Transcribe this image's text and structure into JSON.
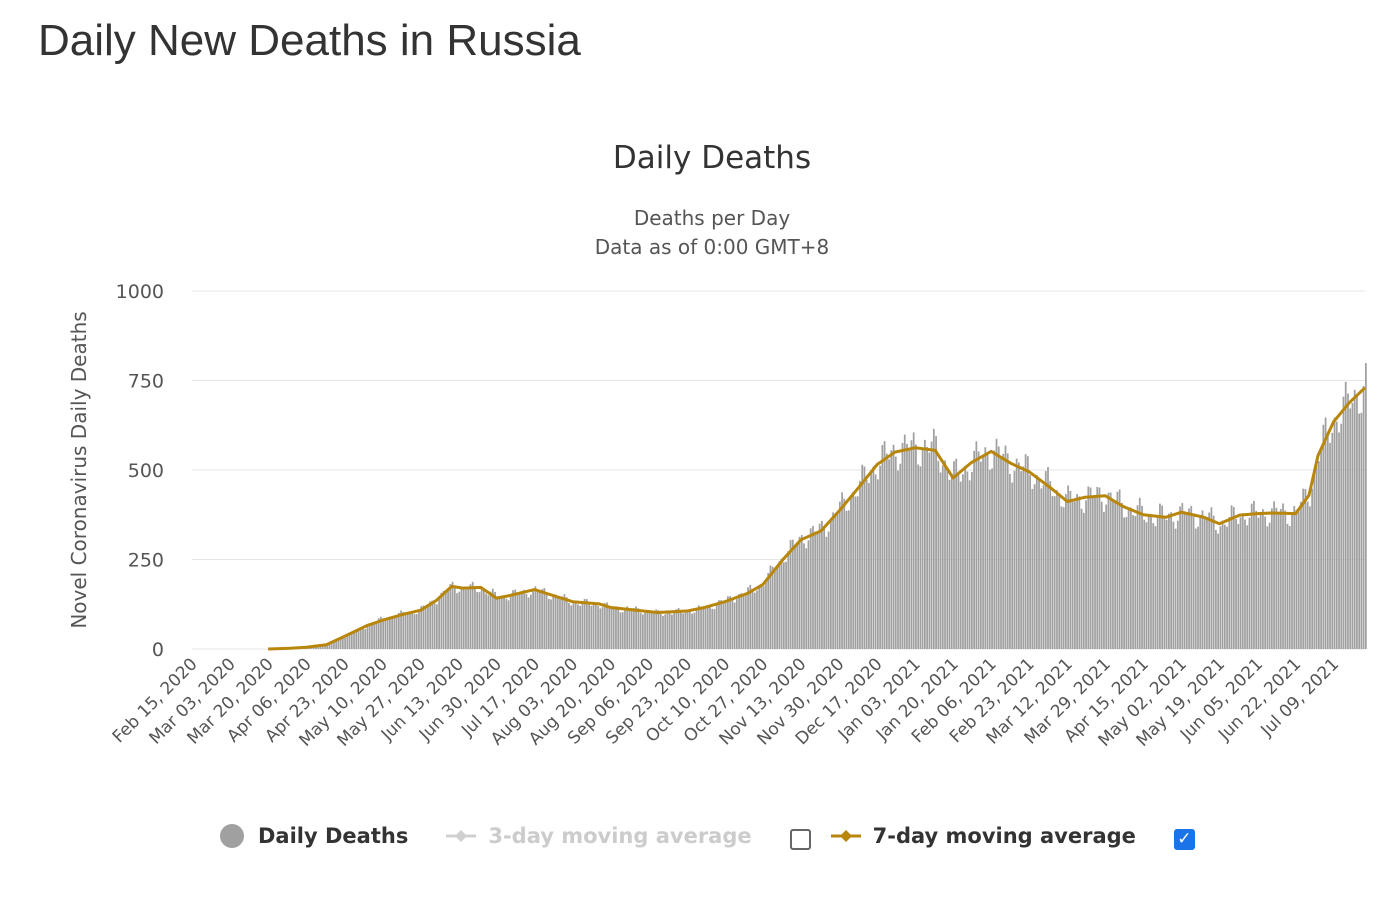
{
  "page": {
    "title": "Daily New Deaths in Russia"
  },
  "colors": {
    "bars": "#a0a0a0",
    "ma7": "#b8860b",
    "ma3_disabled": "#d0d0d0",
    "grid": "#e6e6e6",
    "checkbox": "#1a73e8"
  },
  "legend": {
    "daily": "Daily Deaths",
    "ma3": "3-day moving average",
    "ma7": "7-day moving average",
    "ma3_checked": false,
    "ma7_checked": true
  },
  "chart_data": {
    "type": "bar",
    "title": "Daily Deaths",
    "subtitle": [
      "Deaths per Day",
      "Data as of 0:00 GMT+8"
    ],
    "ylabel": "Novel Coronavirus Daily Deaths",
    "xlabel": "",
    "ylim": [
      0,
      1000
    ],
    "yticks": [
      0,
      250,
      500,
      750,
      1000
    ],
    "grid": true,
    "legend_position": "bottom",
    "x_start": "2020-02-15",
    "x_end": "2021-07-23",
    "xtick_labels": [
      "Feb 15, 2020",
      "Mar 03, 2020",
      "Mar 20, 2020",
      "Apr 06, 2020",
      "Apr 23, 2020",
      "May 10, 2020",
      "May 27, 2020",
      "Jun 13, 2020",
      "Jun 30, 2020",
      "Jul 17, 2020",
      "Aug 03, 2020",
      "Aug 20, 2020",
      "Sep 06, 2020",
      "Sep 23, 2020",
      "Oct 10, 2020",
      "Oct 27, 2020",
      "Nov 13, 2020",
      "Nov 30, 2020",
      "Dec 17, 2020",
      "Jan 03, 2021",
      "Jan 20, 2021",
      "Feb 06, 2021",
      "Feb 23, 2021",
      "Mar 12, 2021",
      "Mar 29, 2021",
      "Apr 15, 2021",
      "May 02, 2021",
      "May 19, 2021",
      "Jun 05, 2021",
      "Jun 22, 2021",
      "Jul 09, 2021"
    ],
    "series": [
      {
        "name": "Daily Deaths",
        "kind": "bar",
        "anchors": [
          [
            "2020-02-15",
            0
          ],
          [
            "2020-03-20",
            0
          ],
          [
            "2020-03-30",
            2
          ],
          [
            "2020-04-06",
            5
          ],
          [
            "2020-04-15",
            12
          ],
          [
            "2020-04-23",
            35
          ],
          [
            "2020-05-03",
            65
          ],
          [
            "2020-05-10",
            85
          ],
          [
            "2020-05-20",
            100
          ],
          [
            "2020-05-27",
            110
          ],
          [
            "2020-06-03",
            140
          ],
          [
            "2020-06-10",
            175
          ],
          [
            "2020-06-15",
            170
          ],
          [
            "2020-06-23",
            170
          ],
          [
            "2020-06-30",
            145
          ],
          [
            "2020-07-05",
            150
          ],
          [
            "2020-07-17",
            165
          ],
          [
            "2020-07-25",
            150
          ],
          [
            "2020-08-03",
            130
          ],
          [
            "2020-08-15",
            125
          ],
          [
            "2020-08-20",
            115
          ],
          [
            "2020-09-01",
            110
          ],
          [
            "2020-09-10",
            100
          ],
          [
            "2020-09-23",
            105
          ],
          [
            "2020-10-01",
            115
          ],
          [
            "2020-10-10",
            135
          ],
          [
            "2020-10-20",
            160
          ],
          [
            "2020-10-27",
            185
          ],
          [
            "2020-11-05",
            260
          ],
          [
            "2020-11-13",
            310
          ],
          [
            "2020-11-22",
            335
          ],
          [
            "2020-11-30",
            390
          ],
          [
            "2020-12-08",
            450
          ],
          [
            "2020-12-17",
            520
          ],
          [
            "2020-12-25",
            555
          ],
          [
            "2021-01-03",
            565
          ],
          [
            "2021-01-12",
            560
          ],
          [
            "2021-01-20",
            480
          ],
          [
            "2021-01-28",
            520
          ],
          [
            "2021-02-06",
            555
          ],
          [
            "2021-02-15",
            520
          ],
          [
            "2021-02-23",
            495
          ],
          [
            "2021-03-05",
            450
          ],
          [
            "2021-03-12",
            415
          ],
          [
            "2021-03-20",
            425
          ],
          [
            "2021-03-29",
            430
          ],
          [
            "2021-04-06",
            400
          ],
          [
            "2021-04-15",
            375
          ],
          [
            "2021-04-25",
            370
          ],
          [
            "2021-05-02",
            380
          ],
          [
            "2021-05-12",
            370
          ],
          [
            "2021-05-19",
            350
          ],
          [
            "2021-05-28",
            375
          ],
          [
            "2021-06-05",
            378
          ],
          [
            "2021-06-12",
            382
          ],
          [
            "2021-06-22",
            382
          ],
          [
            "2021-06-28",
            440
          ],
          [
            "2021-07-02",
            550
          ],
          [
            "2021-07-09",
            640
          ],
          [
            "2021-07-16",
            690
          ],
          [
            "2021-07-23",
            740
          ]
        ]
      },
      {
        "name": "7-day moving average",
        "kind": "line",
        "anchors": [
          [
            "2020-03-20",
            0
          ],
          [
            "2020-03-30",
            2
          ],
          [
            "2020-04-06",
            5
          ],
          [
            "2020-04-15",
            12
          ],
          [
            "2020-04-23",
            35
          ],
          [
            "2020-05-03",
            65
          ],
          [
            "2020-05-10",
            80
          ],
          [
            "2020-05-20",
            98
          ],
          [
            "2020-05-27",
            108
          ],
          [
            "2020-06-03",
            135
          ],
          [
            "2020-06-10",
            175
          ],
          [
            "2020-06-15",
            170
          ],
          [
            "2020-06-23",
            172
          ],
          [
            "2020-06-30",
            142
          ],
          [
            "2020-07-05",
            148
          ],
          [
            "2020-07-17",
            166
          ],
          [
            "2020-07-25",
            150
          ],
          [
            "2020-08-03",
            132
          ],
          [
            "2020-08-15",
            126
          ],
          [
            "2020-08-20",
            116
          ],
          [
            "2020-09-01",
            108
          ],
          [
            "2020-09-10",
            102
          ],
          [
            "2020-09-23",
            106
          ],
          [
            "2020-10-01",
            116
          ],
          [
            "2020-10-10",
            132
          ],
          [
            "2020-10-20",
            155
          ],
          [
            "2020-10-27",
            180
          ],
          [
            "2020-11-05",
            250
          ],
          [
            "2020-11-13",
            305
          ],
          [
            "2020-11-22",
            330
          ],
          [
            "2020-11-30",
            385
          ],
          [
            "2020-12-08",
            445
          ],
          [
            "2020-12-17",
            515
          ],
          [
            "2020-12-25",
            550
          ],
          [
            "2021-01-03",
            562
          ],
          [
            "2021-01-12",
            555
          ],
          [
            "2021-01-20",
            478
          ],
          [
            "2021-01-28",
            520
          ],
          [
            "2021-02-06",
            552
          ],
          [
            "2021-02-15",
            518
          ],
          [
            "2021-02-23",
            495
          ],
          [
            "2021-03-05",
            448
          ],
          [
            "2021-03-12",
            412
          ],
          [
            "2021-03-20",
            424
          ],
          [
            "2021-03-29",
            428
          ],
          [
            "2021-04-06",
            398
          ],
          [
            "2021-04-15",
            375
          ],
          [
            "2021-04-25",
            368
          ],
          [
            "2021-05-02",
            382
          ],
          [
            "2021-05-12",
            368
          ],
          [
            "2021-05-19",
            350
          ],
          [
            "2021-05-28",
            374
          ],
          [
            "2021-06-05",
            378
          ],
          [
            "2021-06-12",
            380
          ],
          [
            "2021-06-22",
            378
          ],
          [
            "2021-06-28",
            430
          ],
          [
            "2021-07-02",
            540
          ],
          [
            "2021-07-09",
            635
          ],
          [
            "2021-07-16",
            688
          ],
          [
            "2021-07-23",
            730
          ]
        ]
      }
    ]
  }
}
